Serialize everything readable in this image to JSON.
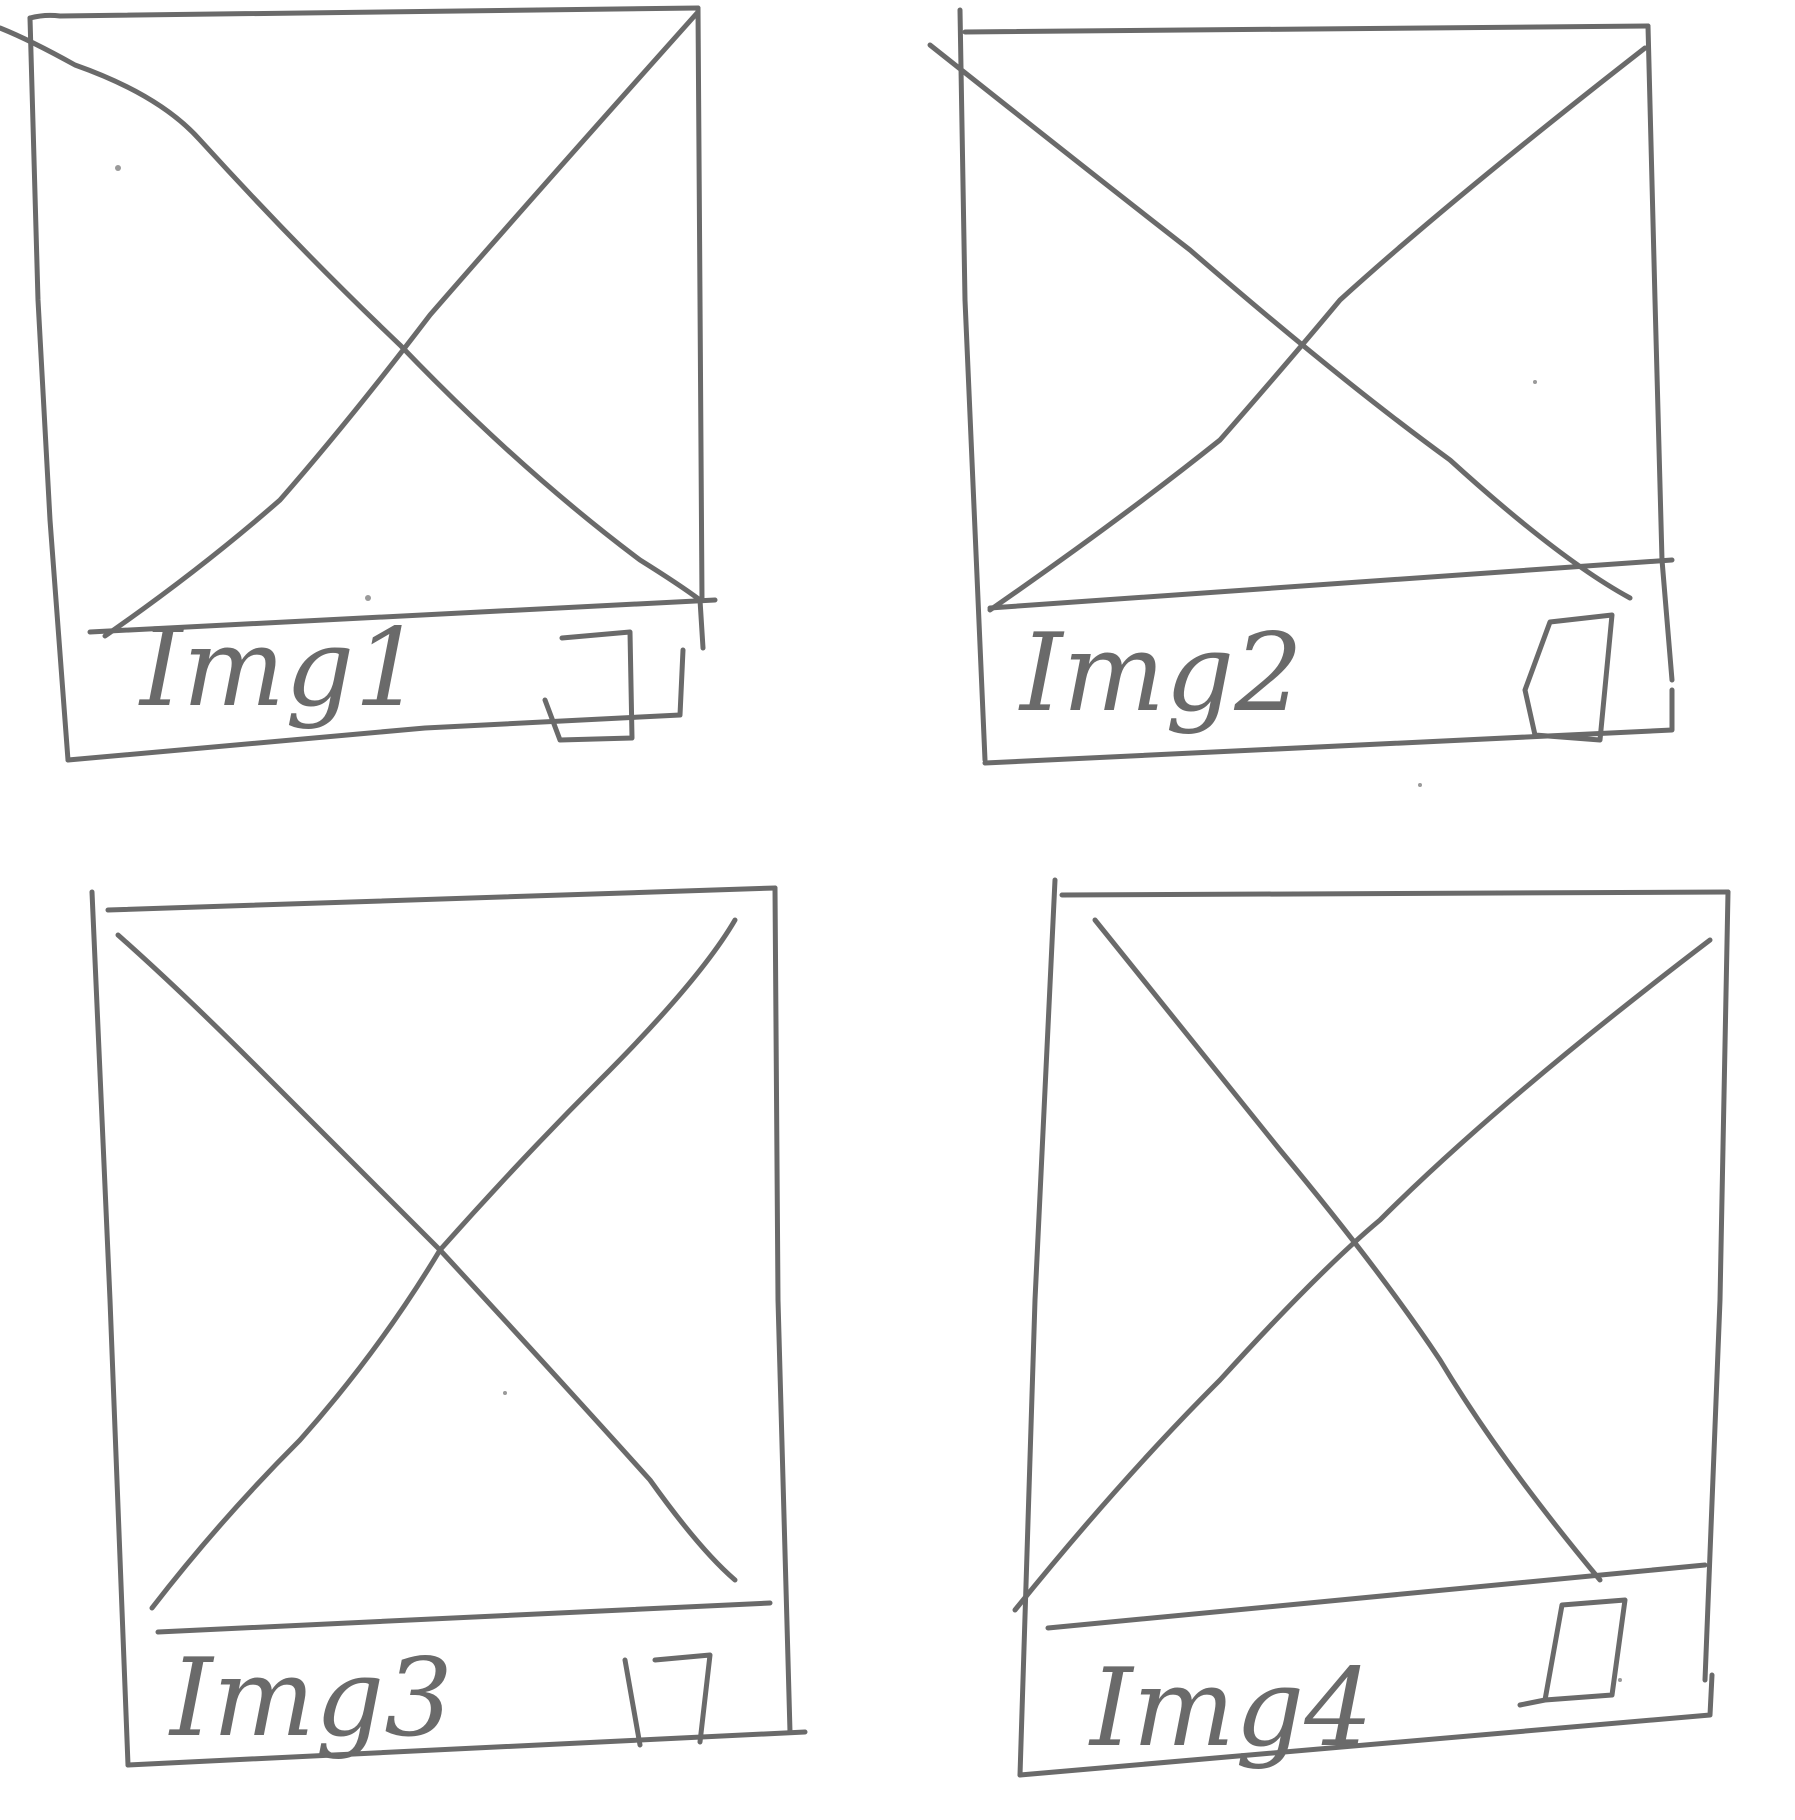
{
  "cards": [
    {
      "label": "Img1"
    },
    {
      "label": "Img2"
    },
    {
      "label": "Img3"
    },
    {
      "label": "Img4"
    }
  ],
  "ink_color": "#6a6a6a",
  "icons": [
    "image-placeholder-icon",
    "checkbox-icon"
  ]
}
